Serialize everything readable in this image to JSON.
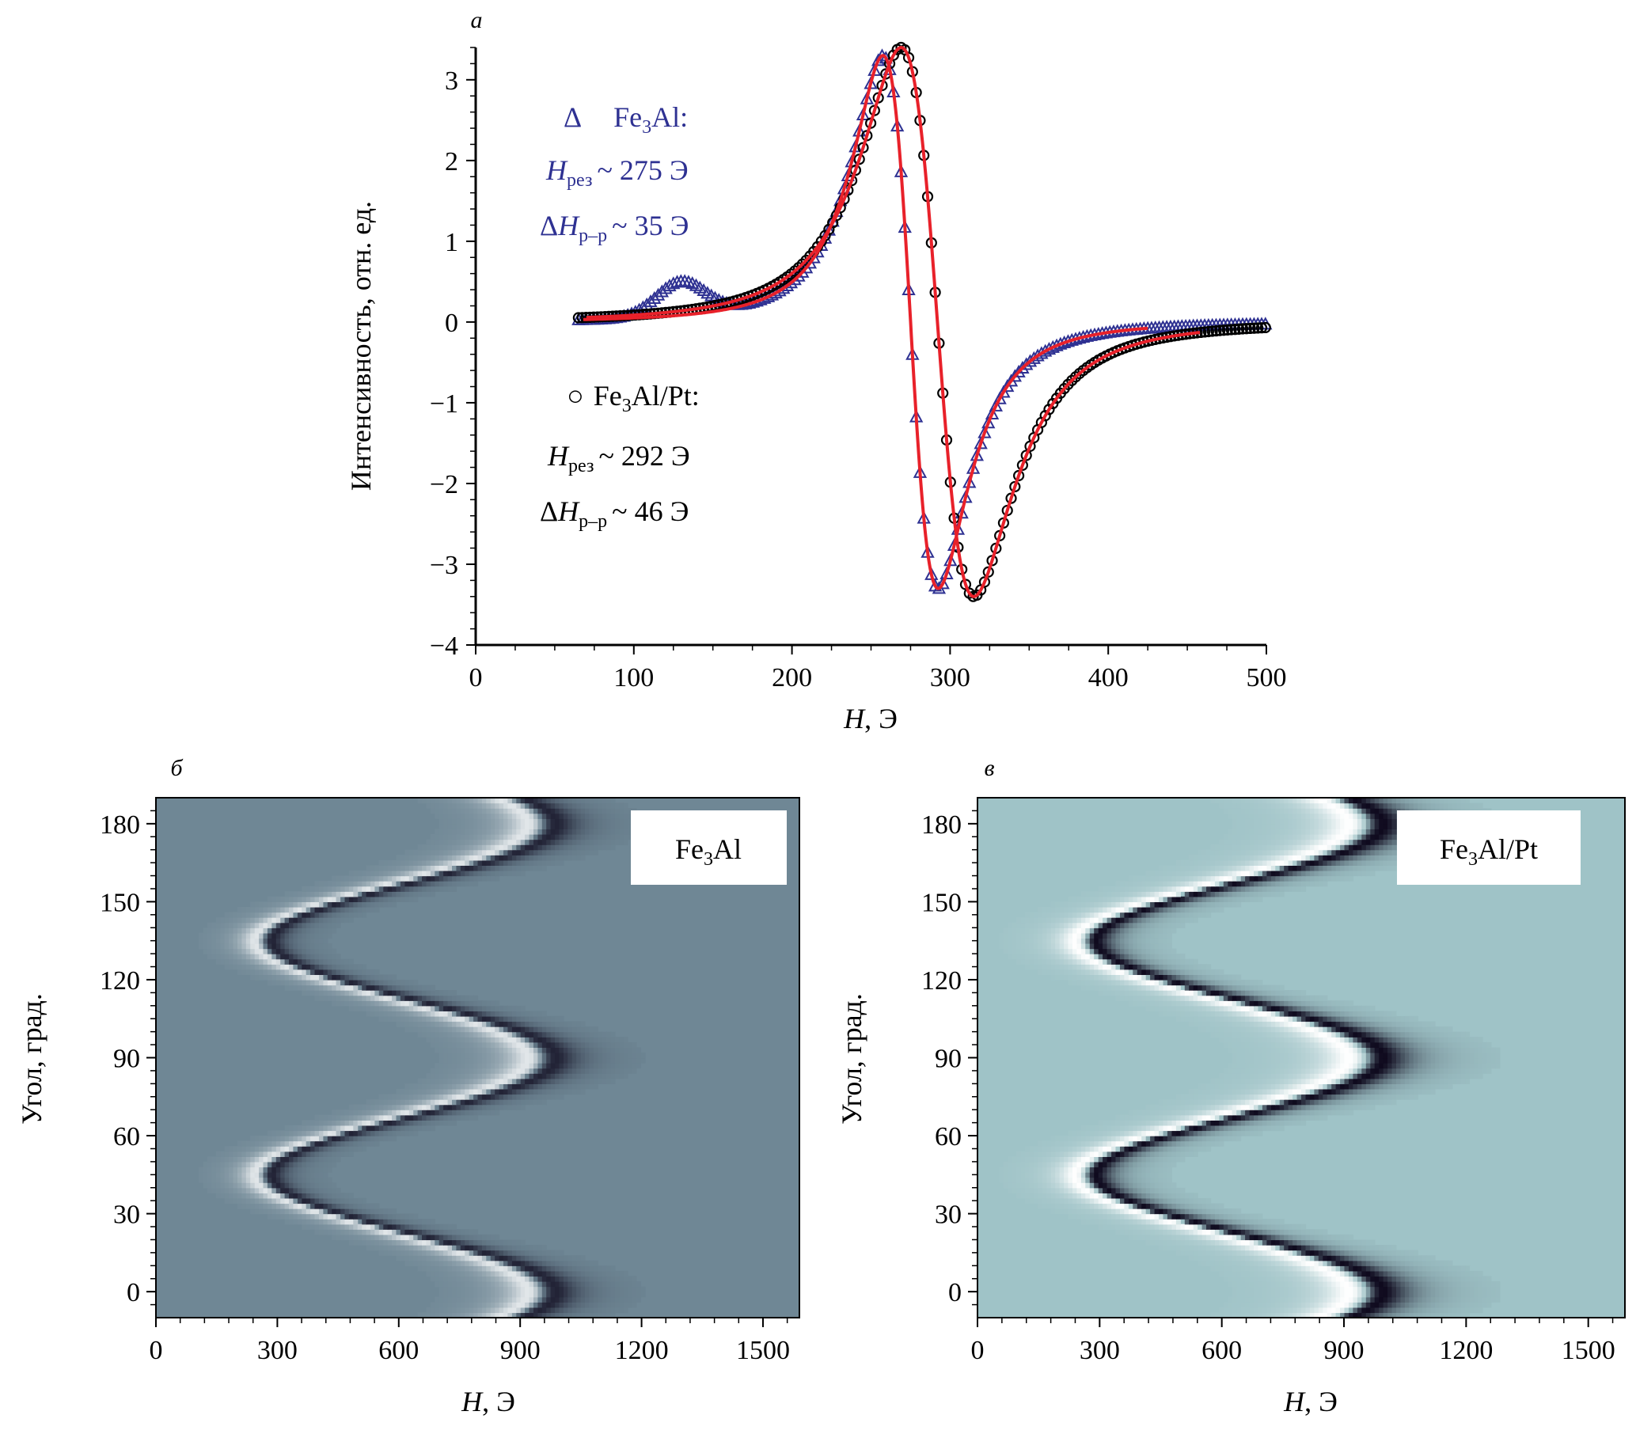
{
  "chart_data": [
    {
      "panel": "а",
      "type": "scatter",
      "xlabel": "H, Э",
      "ylabel": "Интенсивность, отн. ед.",
      "xlim": [
        0,
        500
      ],
      "ylim": [
        -4,
        3.4
      ],
      "x_ticks": [
        0,
        100,
        200,
        300,
        400,
        500
      ],
      "y_ticks": [
        -4,
        -3,
        -2,
        -1,
        0,
        1,
        2,
        3
      ],
      "grid": false,
      "annotations": {
        "fe3al": {
          "symbol": "Δ",
          "label": "Fe",
          "sub": "3",
          "label_end": "Al:",
          "hres": "~ 275 Э",
          "dh": "~ 35 Э",
          "color": "#2e3192"
        },
        "fe3alpt": {
          "symbol": "○",
          "label": "Fe",
          "sub": "3",
          "label_end": "Al/Pt:",
          "hres": "~ 292 Э",
          "dh": "~ 46 Э",
          "color": "#000000"
        },
        "h_letter": "H",
        "hres_sub": "рез",
        "dh_sub": "р–р",
        "delta": "Δ"
      },
      "series": [
        {
          "marker": "triangle",
          "color": "#2e3192",
          "x_range": [
            65,
            500
          ],
          "center": 275,
          "width": 35,
          "amp": 3.3,
          "bump_center": 130,
          "bump_amp": 0.42,
          "bump_width": 22
        },
        {
          "marker": "circle",
          "color": "#000000",
          "x_range": [
            65,
            500
          ],
          "center": 292,
          "width": 46,
          "amp": 3.4
        },
        {
          "marker": "line",
          "color": "#e8212a",
          "x_range": [
            68,
            425
          ],
          "center": 275,
          "width": 35,
          "amp": 3.3
        },
        {
          "marker": "line",
          "color": "#e8212a",
          "x_range": [
            70,
            458
          ],
          "center": 292,
          "width": 46,
          "amp": 3.4
        }
      ]
    },
    {
      "panel": "б",
      "type": "heatmap",
      "label": "Fe",
      "label_sub": "3",
      "label_end": "Al",
      "xlabel": "H, Э",
      "ylabel": "Угол, град.",
      "xlim": [
        0,
        1590
      ],
      "ylim": [
        -10,
        190
      ],
      "x_ticks": [
        0,
        300,
        600,
        900,
        1200,
        1500
      ],
      "y_ticks": [
        0,
        30,
        60,
        90,
        120,
        150,
        180
      ],
      "background": "#6f8795",
      "contrast": 0.8,
      "resonance": {
        "min_field": 265,
        "max_field": 955,
        "min_angles": [
          45,
          135
        ],
        "max_angles": [
          0,
          90,
          180
        ],
        "linewidth": 38
      }
    },
    {
      "panel": "в",
      "type": "heatmap",
      "label": "Fe",
      "label_sub": "3",
      "label_end": "Al/Pt",
      "xlabel": "H, Э",
      "ylabel": "Угол, град.",
      "xlim": [
        0,
        1590
      ],
      "ylim": [
        -10,
        190
      ],
      "x_ticks": [
        0,
        300,
        600,
        900,
        1200,
        1500
      ],
      "y_ticks": [
        0,
        30,
        60,
        90,
        120,
        150,
        180
      ],
      "background": "#9fc3c7",
      "contrast": 1.0,
      "resonance": {
        "min_field": 265,
        "max_field": 955,
        "min_angles": [
          45,
          135
        ],
        "max_angles": [
          0,
          90,
          180
        ],
        "linewidth": 46
      }
    }
  ]
}
